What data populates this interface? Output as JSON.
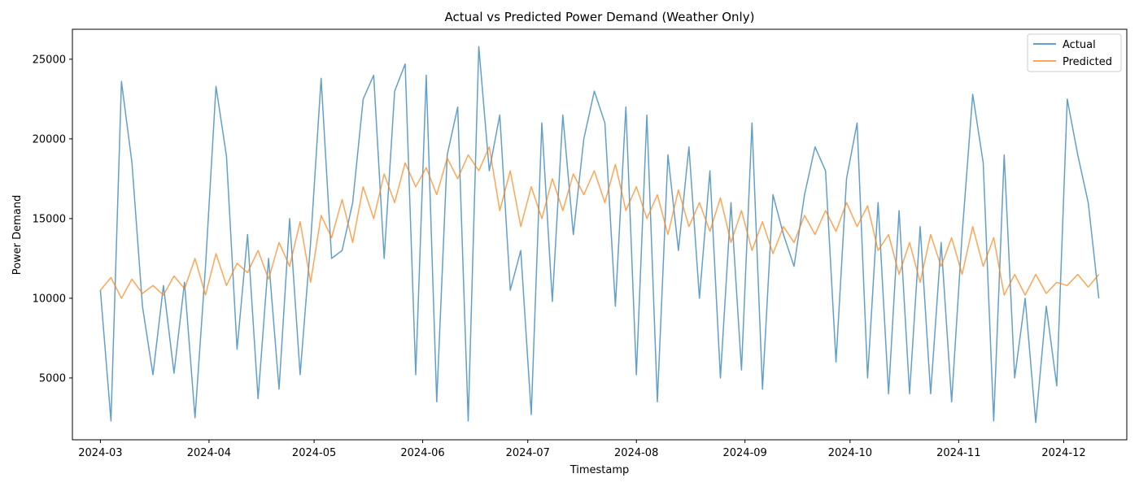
{
  "chart_data": {
    "type": "line",
    "title": "Actual vs Predicted Power Demand (Weather Only)",
    "xlabel": "Timestamp",
    "ylabel": "Power Demand",
    "x_type": "date",
    "xlim": [
      "2024-02-22",
      "2024-12-19"
    ],
    "ylim": [
      1120,
      26880
    ],
    "x_ticks": [
      "2024-03-01",
      "2024-04-01",
      "2024-05-01",
      "2024-06-01",
      "2024-07-01",
      "2024-08-01",
      "2024-09-01",
      "2024-10-01",
      "2024-11-01",
      "2024-12-01"
    ],
    "x_tick_labels": [
      "2024-03",
      "2024-04",
      "2024-05",
      "2024-06",
      "2024-07",
      "2024-08",
      "2024-09",
      "2024-10",
      "2024-11",
      "2024-12"
    ],
    "y_ticks": [
      5000,
      10000,
      15000,
      20000,
      25000
    ],
    "y_tick_labels": [
      "5000",
      "10000",
      "15000",
      "20000",
      "25000"
    ],
    "grid": false,
    "legend_position": "top-right",
    "legend": [
      "Actual",
      "Predicted"
    ],
    "series": [
      {
        "name": "Actual",
        "color": "#1f77b4",
        "alpha": 0.7,
        "x": [
          "2024-03-01",
          "2024-03-04",
          "2024-03-07",
          "2024-03-10",
          "2024-03-13",
          "2024-03-16",
          "2024-03-19",
          "2024-03-22",
          "2024-03-25",
          "2024-03-28",
          "2024-03-31",
          "2024-04-03",
          "2024-04-06",
          "2024-04-09",
          "2024-04-12",
          "2024-04-15",
          "2024-04-18",
          "2024-04-21",
          "2024-04-24",
          "2024-04-27",
          "2024-04-30",
          "2024-05-03",
          "2024-05-06",
          "2024-05-09",
          "2024-05-12",
          "2024-05-15",
          "2024-05-18",
          "2024-05-21",
          "2024-05-24",
          "2024-05-27",
          "2024-05-30",
          "2024-06-02",
          "2024-06-05",
          "2024-06-08",
          "2024-06-11",
          "2024-06-14",
          "2024-06-17",
          "2024-06-20",
          "2024-06-23",
          "2024-06-26",
          "2024-06-29",
          "2024-07-02",
          "2024-07-05",
          "2024-07-08",
          "2024-07-11",
          "2024-07-14",
          "2024-07-17",
          "2024-07-20",
          "2024-07-23",
          "2024-07-26",
          "2024-07-29",
          "2024-08-01",
          "2024-08-04",
          "2024-08-07",
          "2024-08-10",
          "2024-08-13",
          "2024-08-16",
          "2024-08-19",
          "2024-08-22",
          "2024-08-25",
          "2024-08-28",
          "2024-08-31",
          "2024-09-03",
          "2024-09-06",
          "2024-09-09",
          "2024-09-12",
          "2024-09-15",
          "2024-09-18",
          "2024-09-21",
          "2024-09-24",
          "2024-09-27",
          "2024-09-30",
          "2024-10-03",
          "2024-10-06",
          "2024-10-09",
          "2024-10-12",
          "2024-10-15",
          "2024-10-18",
          "2024-10-21",
          "2024-10-24",
          "2024-10-27",
          "2024-10-30",
          "2024-11-02",
          "2024-11-05",
          "2024-11-08",
          "2024-11-11",
          "2024-11-14",
          "2024-11-17",
          "2024-11-20",
          "2024-11-23",
          "2024-11-26",
          "2024-11-29",
          "2024-12-02",
          "2024-12-05",
          "2024-12-08",
          "2024-12-11"
        ],
        "values": [
          10500,
          2300,
          23600,
          18500,
          9500,
          5200,
          10800,
          5300,
          11000,
          2500,
          12000,
          23300,
          18900,
          6800,
          14000,
          3700,
          12500,
          4300,
          15000,
          5200,
          13500,
          23800,
          12500,
          13000,
          16000,
          22500,
          24000,
          12500,
          23000,
          24700,
          5200,
          24000,
          3500,
          19000,
          22000,
          2300,
          25800,
          18000,
          21500,
          10500,
          13000,
          2700,
          21000,
          9800,
          21500,
          14000,
          20000,
          23000,
          21000,
          9500,
          22000,
          5200,
          21500,
          3500,
          19000,
          13000,
          19500,
          10000,
          18000,
          5000,
          16000,
          5500,
          21000,
          4300,
          16500,
          14000,
          12000,
          16500,
          19500,
          18000,
          6000,
          17500,
          21000,
          5000,
          16000,
          4000,
          15500,
          4000,
          14500,
          4000,
          13500,
          3500,
          14000,
          22800,
          18500,
          2300,
          19000,
          5000,
          10000,
          2200,
          9500,
          4500,
          22500,
          19000,
          16000,
          10000
        ]
      },
      {
        "name": "Predicted",
        "color": "#ff7f0e",
        "alpha": 0.7,
        "x": [
          "2024-03-01",
          "2024-03-04",
          "2024-03-07",
          "2024-03-10",
          "2024-03-13",
          "2024-03-16",
          "2024-03-19",
          "2024-03-22",
          "2024-03-25",
          "2024-03-28",
          "2024-03-31",
          "2024-04-03",
          "2024-04-06",
          "2024-04-09",
          "2024-04-12",
          "2024-04-15",
          "2024-04-18",
          "2024-04-21",
          "2024-04-24",
          "2024-04-27",
          "2024-04-30",
          "2024-05-03",
          "2024-05-06",
          "2024-05-09",
          "2024-05-12",
          "2024-05-15",
          "2024-05-18",
          "2024-05-21",
          "2024-05-24",
          "2024-05-27",
          "2024-05-30",
          "2024-06-02",
          "2024-06-05",
          "2024-06-08",
          "2024-06-11",
          "2024-06-14",
          "2024-06-17",
          "2024-06-20",
          "2024-06-23",
          "2024-06-26",
          "2024-06-29",
          "2024-07-02",
          "2024-07-05",
          "2024-07-08",
          "2024-07-11",
          "2024-07-14",
          "2024-07-17",
          "2024-07-20",
          "2024-07-23",
          "2024-07-26",
          "2024-07-29",
          "2024-08-01",
          "2024-08-04",
          "2024-08-07",
          "2024-08-10",
          "2024-08-13",
          "2024-08-16",
          "2024-08-19",
          "2024-08-22",
          "2024-08-25",
          "2024-08-28",
          "2024-08-31",
          "2024-09-03",
          "2024-09-06",
          "2024-09-09",
          "2024-09-12",
          "2024-09-15",
          "2024-09-18",
          "2024-09-21",
          "2024-09-24",
          "2024-09-27",
          "2024-09-30",
          "2024-10-03",
          "2024-10-06",
          "2024-10-09",
          "2024-10-12",
          "2024-10-15",
          "2024-10-18",
          "2024-10-21",
          "2024-10-24",
          "2024-10-27",
          "2024-10-30",
          "2024-11-02",
          "2024-11-05",
          "2024-11-08",
          "2024-11-11",
          "2024-11-14",
          "2024-11-17",
          "2024-11-20",
          "2024-11-23",
          "2024-11-26",
          "2024-11-29",
          "2024-12-02",
          "2024-12-05",
          "2024-12-08",
          "2024-12-11"
        ],
        "values": [
          10500,
          11300,
          10000,
          11200,
          10300,
          10800,
          10200,
          11400,
          10600,
          12500,
          10200,
          12800,
          10800,
          12200,
          11600,
          13000,
          11200,
          13500,
          12000,
          14800,
          11000,
          15200,
          13800,
          16200,
          13500,
          17000,
          15000,
          17800,
          16000,
          18500,
          17000,
          18200,
          16500,
          18800,
          17500,
          19000,
          18000,
          19500,
          15500,
          18000,
          14500,
          17000,
          15000,
          17500,
          15500,
          17800,
          16500,
          18000,
          16000,
          18400,
          15500,
          17000,
          15000,
          16500,
          14000,
          16800,
          14500,
          16000,
          14200,
          16300,
          13500,
          15500,
          13000,
          14800,
          12800,
          14500,
          13500,
          15200,
          14000,
          15500,
          14200,
          16000,
          14500,
          15800,
          13000,
          14000,
          11500,
          13500,
          11000,
          14000,
          12000,
          13800,
          11500,
          14500,
          12000,
          13800,
          10200,
          11500,
          10200,
          11500,
          10300,
          11000,
          10800,
          11500,
          10700,
          11500
        ]
      }
    ]
  }
}
